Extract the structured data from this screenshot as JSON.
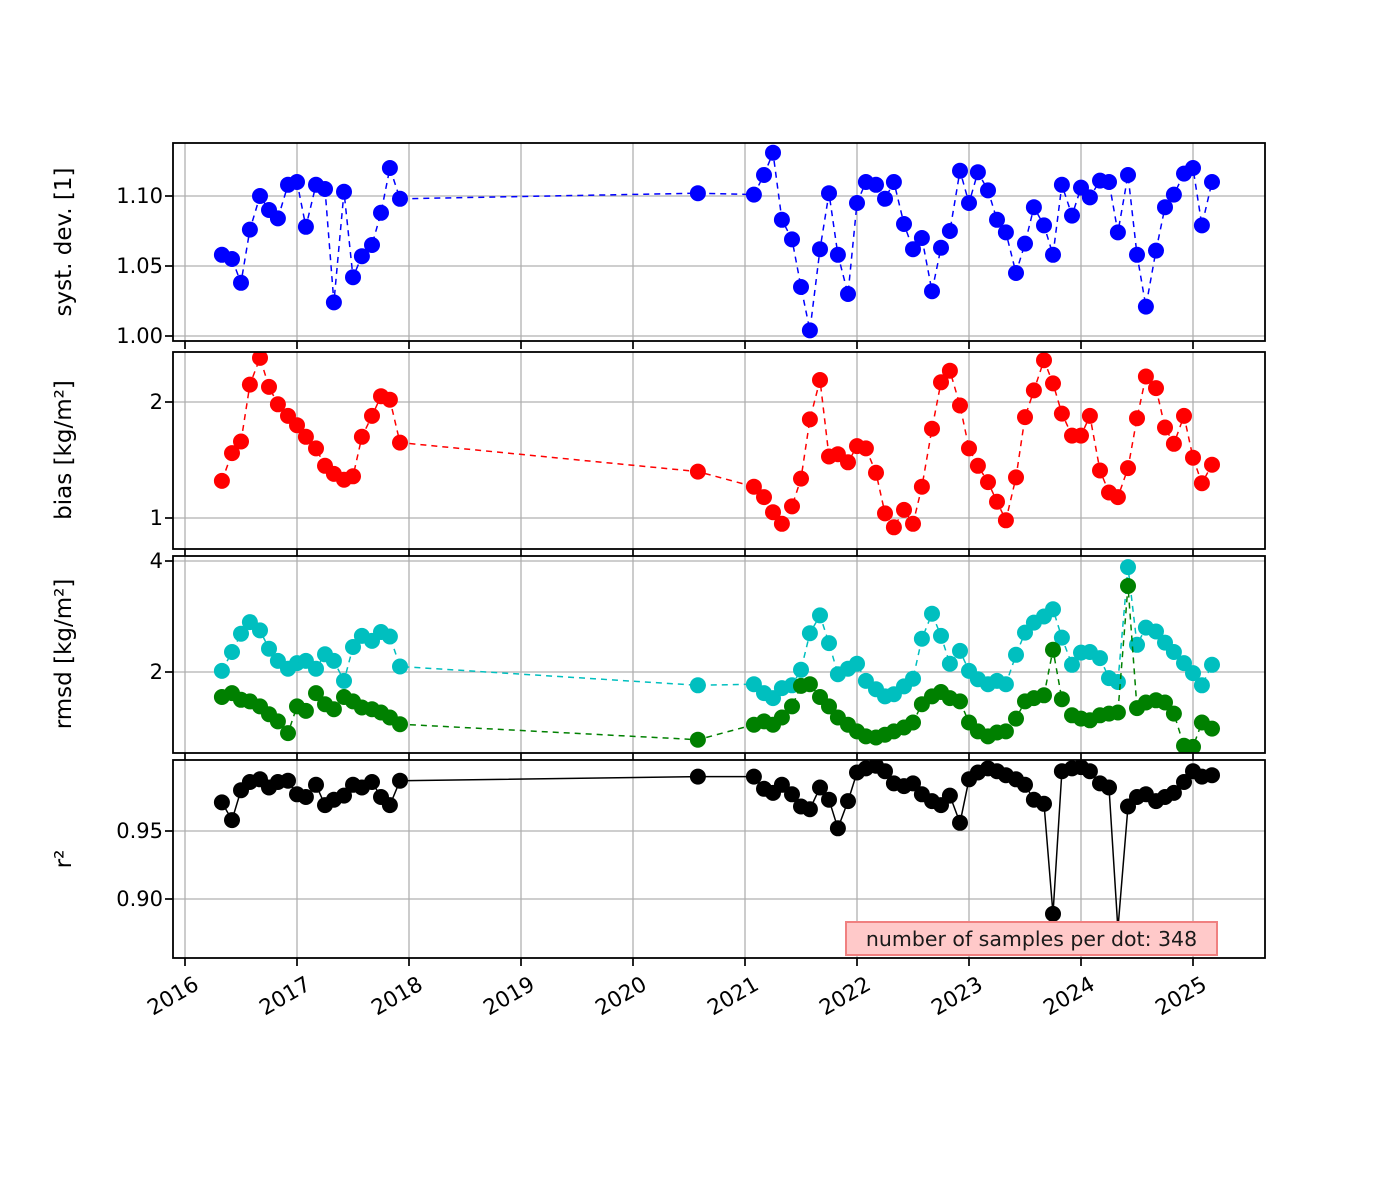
{
  "figure": {
    "background": "#ffffff",
    "grid_color": "#b0b0b0",
    "frame_color": "#000000",
    "annotation": {
      "text": "number of samples per dot: 348",
      "fill": "#ffc9c9",
      "border": "#f08080"
    },
    "x_axis": {
      "lim": [
        2015.893,
        2025.643
      ],
      "ticks": [
        2016,
        2017,
        2018,
        2019,
        2020,
        2021,
        2022,
        2023,
        2024,
        2025
      ],
      "labels": [
        "2016",
        "2017",
        "2018",
        "2019",
        "2020",
        "2021",
        "2022",
        "2023",
        "2024",
        "2025"
      ],
      "label_rotation_deg": 30,
      "grid": true
    }
  },
  "chart_data": {
    "type": "line",
    "title": "",
    "xlabel": "",
    "x_units": "decimal year",
    "x": [
      2016.33,
      2016.42,
      2016.5,
      2016.58,
      2016.67,
      2016.75,
      2016.83,
      2016.92,
      2017.0,
      2017.08,
      2017.17,
      2017.25,
      2017.33,
      2017.42,
      2017.5,
      2017.58,
      2017.67,
      2017.75,
      2017.83,
      2017.92,
      2020.58,
      2021.08,
      2021.17,
      2021.25,
      2021.33,
      2021.42,
      2021.5,
      2021.58,
      2021.67,
      2021.75,
      2021.83,
      2021.92,
      2022.0,
      2022.08,
      2022.17,
      2022.25,
      2022.33,
      2022.42,
      2022.5,
      2022.58,
      2022.67,
      2022.75,
      2022.83,
      2022.92,
      2023.0,
      2023.08,
      2023.17,
      2023.25,
      2023.33,
      2023.42,
      2023.5,
      2023.58,
      2023.67,
      2023.75,
      2023.83,
      2023.92,
      2024.0,
      2024.08,
      2024.17,
      2024.25,
      2024.33,
      2024.42,
      2024.5,
      2024.58,
      2024.67,
      2024.75,
      2024.83,
      2024.92,
      2025.0,
      2025.08,
      2025.17
    ],
    "panels": [
      {
        "id": "systdev",
        "ylabel": "syst. dev. [1]",
        "ylim": [
          0.9964,
          1.1379
        ],
        "yticks": [
          {
            "v": 1.0,
            "label": "1.00"
          },
          {
            "v": 1.05,
            "label": "1.05"
          },
          {
            "v": 1.1,
            "label": "1.10"
          }
        ],
        "series": [
          {
            "name": "syst-dev",
            "color": "#0000ff",
            "linestyle": "dashed",
            "marker": "o",
            "y": [
              1.058,
              1.055,
              1.038,
              1.076,
              1.1,
              1.09,
              1.084,
              1.108,
              1.11,
              1.078,
              1.108,
              1.105,
              1.024,
              1.103,
              1.042,
              1.057,
              1.065,
              1.088,
              1.12,
              1.098,
              1.102,
              1.101,
              1.115,
              1.131,
              1.083,
              1.069,
              1.035,
              1.004,
              1.062,
              1.102,
              1.058,
              1.03,
              1.095,
              1.11,
              1.108,
              1.098,
              1.11,
              1.08,
              1.062,
              1.07,
              1.032,
              1.063,
              1.075,
              1.118,
              1.095,
              1.117,
              1.104,
              1.083,
              1.074,
              1.045,
              1.066,
              1.092,
              1.079,
              1.058,
              1.108,
              1.086,
              1.106,
              1.099,
              1.111,
              1.11,
              1.074,
              1.115,
              1.058,
              1.021,
              1.061,
              1.092,
              1.101,
              1.116,
              1.12,
              1.079,
              1.11
            ]
          }
        ]
      },
      {
        "id": "bias",
        "ylabel": "bias [kg/m²]",
        "ylim": [
          0.733,
          2.431
        ],
        "yticks": [
          {
            "v": 1,
            "label": "1"
          },
          {
            "v": 2,
            "label": "2"
          }
        ],
        "series": [
          {
            "name": "bias",
            "color": "#ff0000",
            "linestyle": "dashed",
            "marker": "o",
            "y": [
              1.32,
              1.56,
              1.66,
              2.15,
              2.38,
              2.13,
              1.98,
              1.88,
              1.8,
              1.7,
              1.6,
              1.45,
              1.38,
              1.33,
              1.36,
              1.7,
              1.88,
              2.05,
              2.02,
              1.65,
              1.4,
              1.27,
              1.18,
              1.05,
              0.95,
              1.1,
              1.34,
              1.85,
              2.19,
              1.53,
              1.55,
              1.48,
              1.62,
              1.6,
              1.39,
              1.04,
              0.92,
              1.07,
              0.95,
              1.27,
              1.77,
              2.17,
              2.27,
              1.97,
              1.6,
              1.45,
              1.31,
              1.14,
              0.98,
              1.35,
              1.87,
              2.1,
              2.36,
              2.16,
              1.9,
              1.71,
              1.71,
              1.88,
              1.41,
              1.22,
              1.18,
              1.43,
              1.86,
              2.22,
              2.12,
              1.78,
              1.64,
              1.88,
              1.52,
              1.3,
              1.46
            ]
          }
        ]
      },
      {
        "id": "rmsd",
        "ylabel": "rmsd [kg/m²]",
        "ylim": [
          0.541,
          4.09
        ],
        "yticks": [
          {
            "v": 2,
            "label": "2"
          },
          {
            "v": 4,
            "label": "4"
          }
        ],
        "series": [
          {
            "name": "rmsd-cyan",
            "color": "#00bfbf",
            "linestyle": "dashed",
            "marker": "o",
            "y": [
              2.02,
              2.36,
              2.69,
              2.9,
              2.75,
              2.42,
              2.2,
              2.06,
              2.16,
              2.2,
              2.06,
              2.32,
              2.2,
              1.84,
              2.45,
              2.65,
              2.56,
              2.72,
              2.64,
              2.1,
              1.76,
              1.78,
              1.62,
              1.53,
              1.71,
              1.76,
              2.04,
              2.7,
              3.02,
              2.52,
              1.96,
              2.06,
              2.15,
              1.84,
              1.69,
              1.56,
              1.6,
              1.74,
              1.88,
              2.6,
              3.05,
              2.65,
              2.15,
              2.38,
              2.02,
              1.87,
              1.78,
              1.84,
              1.78,
              2.31,
              2.71,
              2.89,
              3.0,
              3.13,
              2.62,
              2.13,
              2.35,
              2.36,
              2.25,
              1.89,
              1.82,
              3.89,
              2.49,
              2.8,
              2.73,
              2.53,
              2.36,
              2.16,
              1.98,
              1.76,
              2.13
            ]
          },
          {
            "name": "rmsd-green",
            "color": "#008000",
            "linestyle": "dashed",
            "marker": "o",
            "y": [
              1.55,
              1.62,
              1.5,
              1.47,
              1.38,
              1.24,
              1.11,
              0.9,
              1.38,
              1.3,
              1.62,
              1.42,
              1.33,
              1.55,
              1.47,
              1.36,
              1.33,
              1.27,
              1.18,
              1.06,
              0.78,
              1.05,
              1.11,
              1.05,
              1.18,
              1.38,
              1.75,
              1.78,
              1.55,
              1.38,
              1.18,
              1.05,
              0.93,
              0.84,
              0.82,
              0.87,
              0.93,
              1.0,
              1.09,
              1.42,
              1.56,
              1.64,
              1.53,
              1.47,
              1.09,
              0.93,
              0.84,
              0.91,
              0.93,
              1.16,
              1.47,
              1.53,
              1.58,
              2.4,
              1.51,
              1.22,
              1.16,
              1.13,
              1.22,
              1.25,
              1.27,
              3.55,
              1.35,
              1.45,
              1.49,
              1.45,
              1.25,
              0.67,
              0.65,
              1.09,
              0.98
            ]
          }
        ]
      },
      {
        "id": "r2",
        "ylabel": "r²",
        "ylim": [
          0.8566,
          1.0022
        ],
        "yticks": [
          {
            "v": 0.9,
            "label": "0.90"
          },
          {
            "v": 0.95,
            "label": "0.95"
          }
        ],
        "series": [
          {
            "name": "r-squared",
            "color": "#000000",
            "linestyle": "solid",
            "marker": "o",
            "y": [
              0.971,
              0.958,
              0.98,
              0.986,
              0.988,
              0.982,
              0.986,
              0.987,
              0.977,
              0.975,
              0.984,
              0.969,
              0.973,
              0.976,
              0.984,
              0.982,
              0.986,
              0.975,
              0.969,
              0.987,
              0.99,
              0.99,
              0.981,
              0.978,
              0.984,
              0.977,
              0.968,
              0.966,
              0.982,
              0.973,
              0.952,
              0.972,
              0.993,
              0.996,
              0.998,
              0.994,
              0.985,
              0.983,
              0.985,
              0.977,
              0.972,
              0.969,
              0.976,
              0.956,
              0.988,
              0.993,
              0.996,
              0.994,
              0.991,
              0.988,
              0.984,
              0.973,
              0.97,
              0.889,
              0.994,
              0.996,
              0.997,
              0.994,
              0.985,
              0.982,
              0.878,
              0.968,
              0.975,
              0.977,
              0.972,
              0.975,
              0.978,
              0.986,
              0.994,
              0.99,
              0.991
            ]
          }
        ]
      }
    ]
  }
}
